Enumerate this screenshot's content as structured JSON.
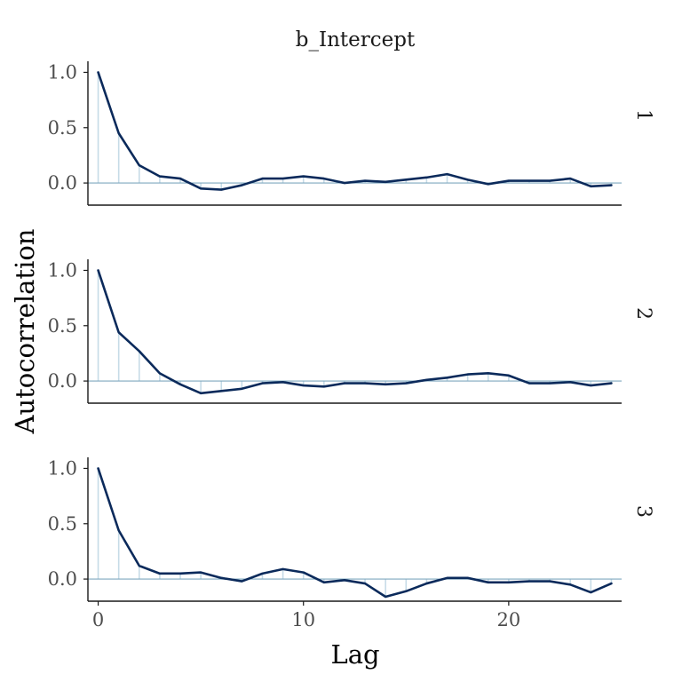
{
  "chart_data": {
    "type": "line",
    "title": "b_Intercept",
    "xlabel": "Lag",
    "ylabel": "Autocorrelation",
    "xlim": [
      -0.5,
      25.5
    ],
    "ylim": [
      -0.2,
      1.1
    ],
    "x_ticks": [
      0,
      10,
      20
    ],
    "y_ticks": [
      1.0,
      0.5,
      0.0
    ],
    "x_tick_labels": [
      "0",
      "10",
      "20"
    ],
    "y_tick_labels": [
      "1.0",
      "0.5",
      "0.0"
    ],
    "grid": false,
    "legend": "none",
    "colors": {
      "line": "#0b2a5b",
      "stem": "#c6dbe7",
      "hline": "#7fa8bf",
      "axis": "#1a1a1a"
    },
    "panels": [
      {
        "label": "1",
        "x": [
          0,
          1,
          2,
          3,
          4,
          5,
          6,
          7,
          8,
          9,
          10,
          11,
          12,
          13,
          14,
          15,
          16,
          17,
          18,
          19,
          20,
          21,
          22,
          23,
          24,
          25
        ],
        "values": [
          1.0,
          0.45,
          0.16,
          0.06,
          0.04,
          -0.05,
          -0.06,
          -0.02,
          0.04,
          0.04,
          0.06,
          0.04,
          0.0,
          0.02,
          0.01,
          0.03,
          0.05,
          0.08,
          0.03,
          -0.01,
          0.02,
          0.02,
          0.02,
          0.04,
          -0.03,
          -0.02
        ]
      },
      {
        "label": "2",
        "x": [
          0,
          1,
          2,
          3,
          4,
          5,
          6,
          7,
          8,
          9,
          10,
          11,
          12,
          13,
          14,
          15,
          16,
          17,
          18,
          19,
          20,
          21,
          22,
          23,
          24,
          25
        ],
        "values": [
          1.0,
          0.44,
          0.27,
          0.07,
          -0.03,
          -0.11,
          -0.09,
          -0.07,
          -0.02,
          -0.01,
          -0.04,
          -0.05,
          -0.02,
          -0.02,
          -0.03,
          -0.02,
          0.01,
          0.03,
          0.06,
          0.07,
          0.05,
          -0.02,
          -0.02,
          -0.01,
          -0.04,
          -0.02
        ]
      },
      {
        "label": "3",
        "x": [
          0,
          1,
          2,
          3,
          4,
          5,
          6,
          7,
          8,
          9,
          10,
          11,
          12,
          13,
          14,
          15,
          16,
          17,
          18,
          19,
          20,
          21,
          22,
          23,
          24,
          25
        ],
        "values": [
          1.0,
          0.44,
          0.12,
          0.05,
          0.05,
          0.06,
          0.01,
          -0.02,
          0.05,
          0.09,
          0.06,
          -0.03,
          -0.01,
          -0.04,
          -0.16,
          -0.11,
          -0.04,
          0.01,
          0.01,
          -0.03,
          -0.03,
          -0.02,
          -0.02,
          -0.05,
          -0.12,
          -0.04
        ]
      }
    ]
  }
}
